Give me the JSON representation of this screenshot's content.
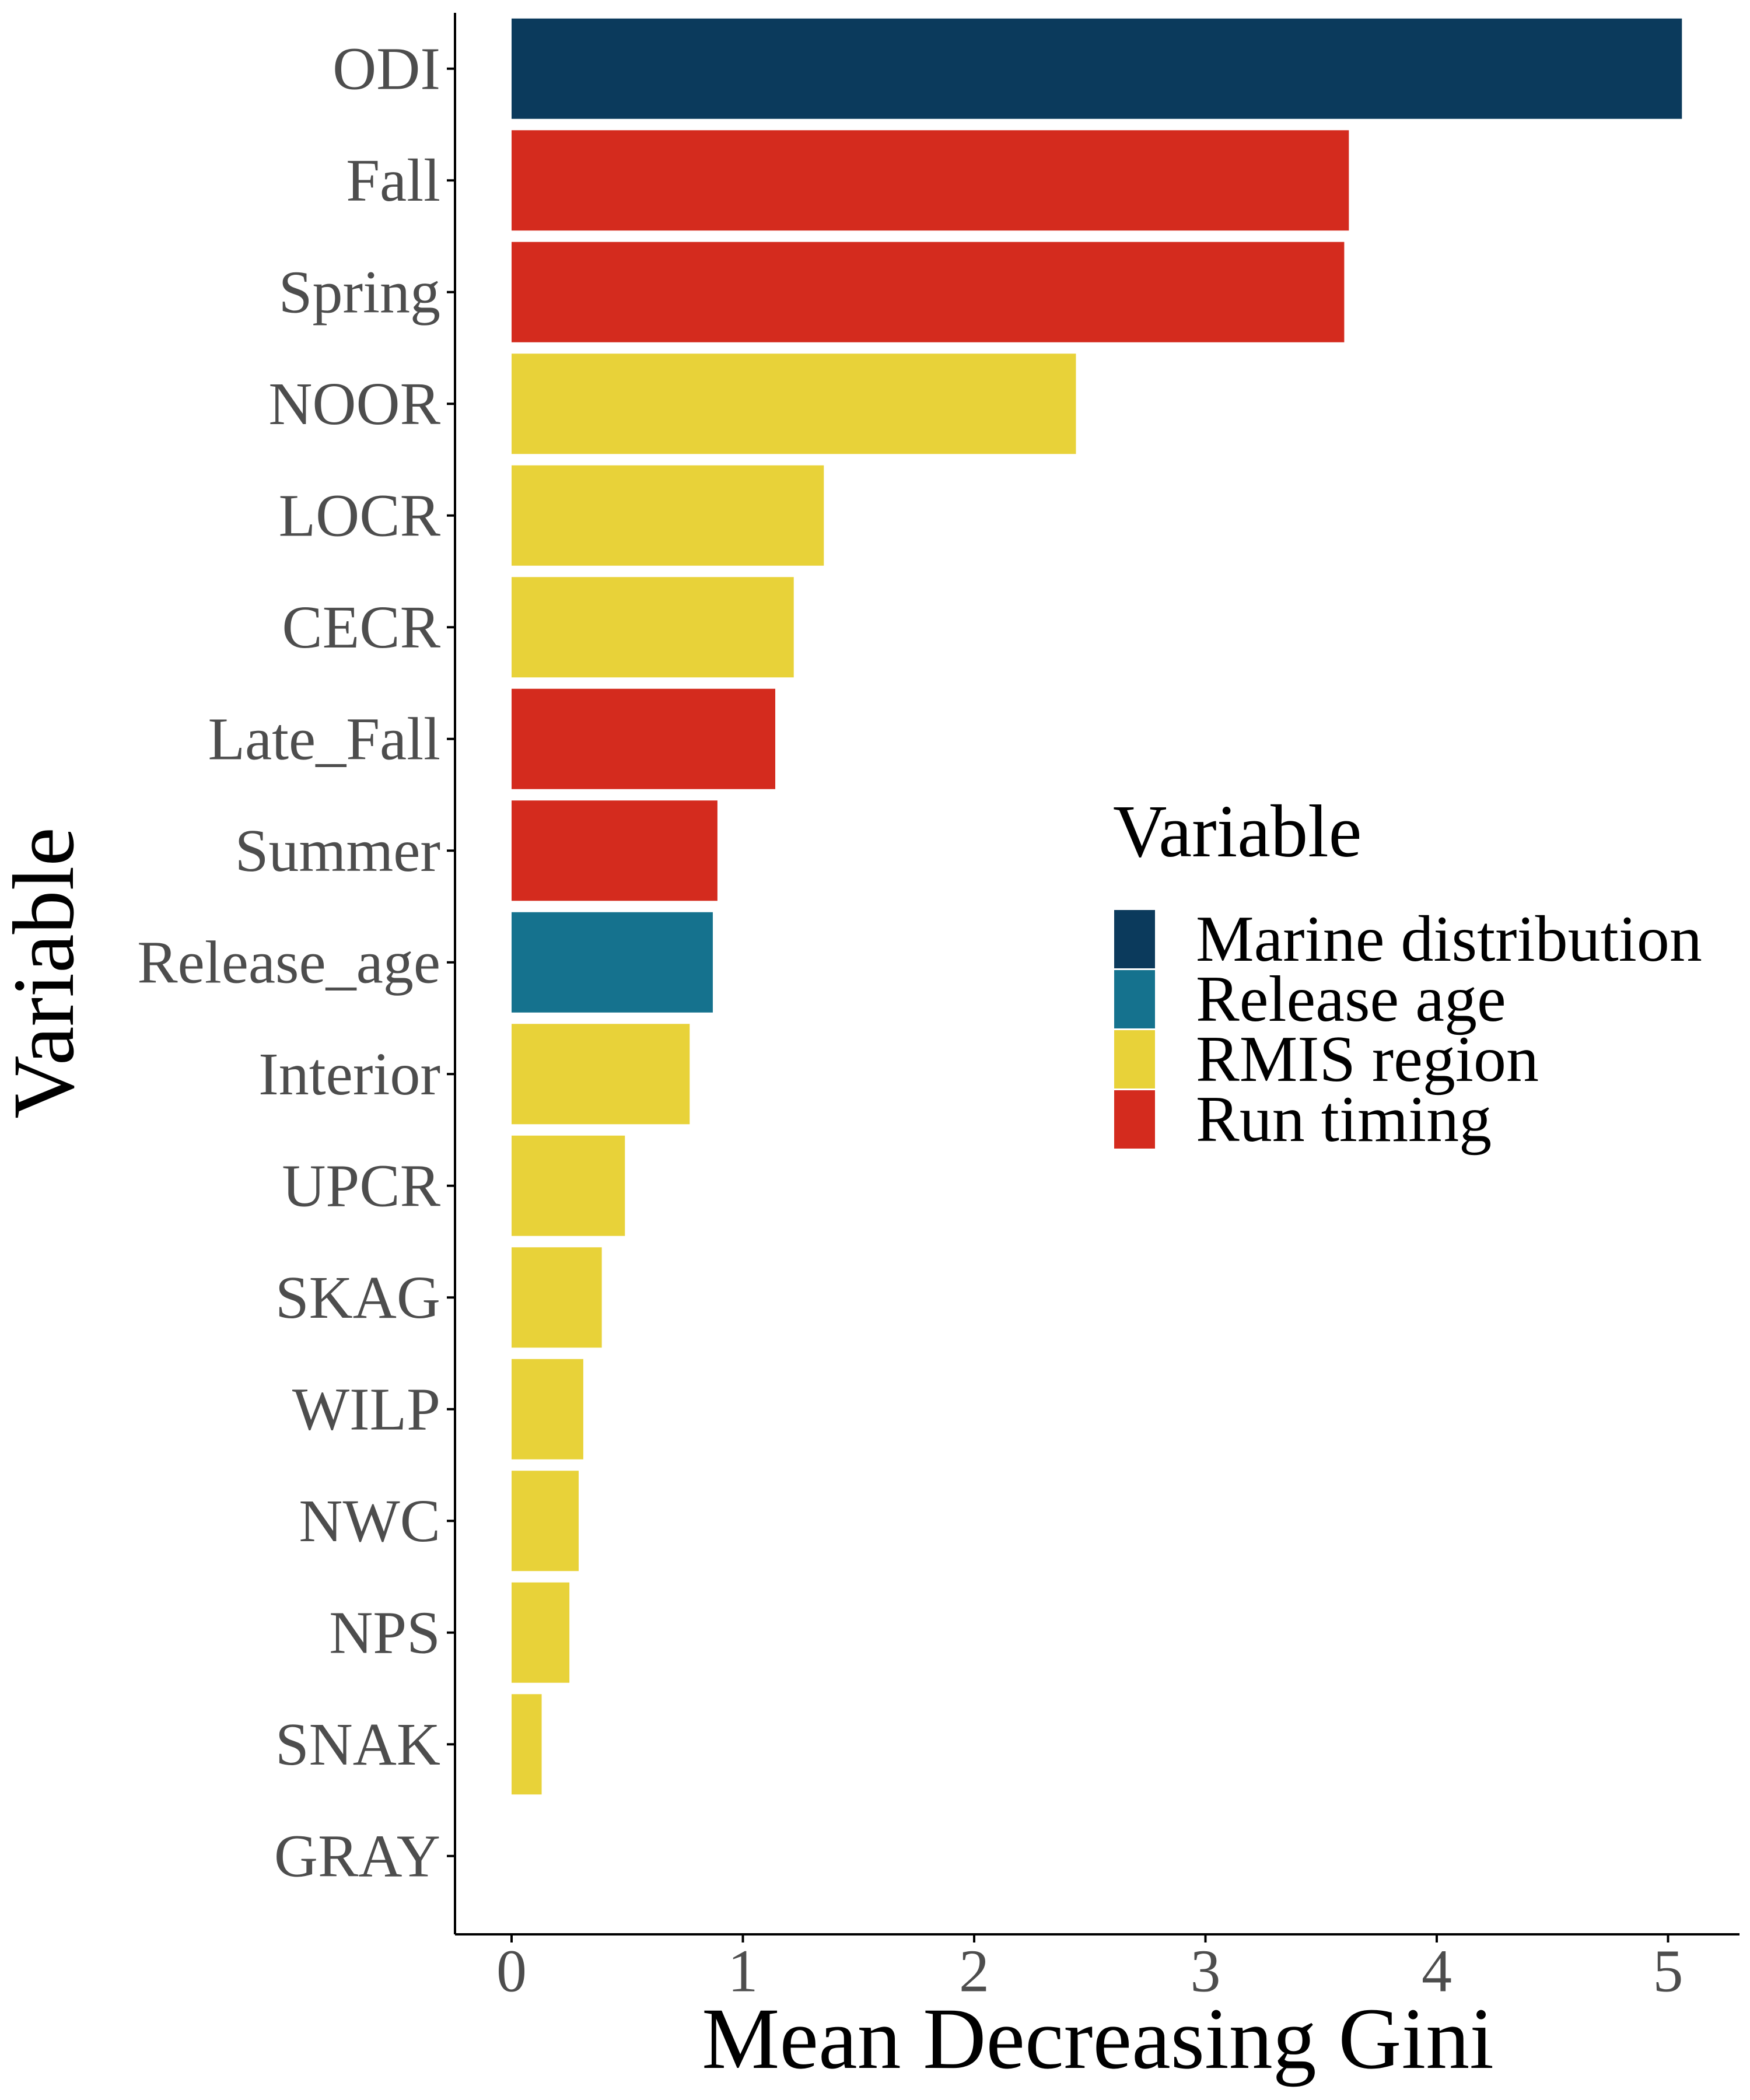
{
  "chart_data": {
    "type": "bar",
    "orientation": "horizontal",
    "xlabel": "Mean Decreasing Gini",
    "ylabel": "Variable",
    "xlim": [
      -0.25,
      5.3
    ],
    "xticks": [
      0,
      1,
      2,
      3,
      4,
      5
    ],
    "grid": false,
    "legend_position": "right",
    "categories": [
      "ODI",
      "Fall",
      "Spring",
      "NOOR",
      "LOCR",
      "CECR",
      "Late_Fall",
      "Summer",
      "Release_age",
      "Interior",
      "UPCR",
      "SKAG",
      "WILP",
      "NWC",
      "NPS",
      "SNAK",
      "GRAY"
    ],
    "values": [
      5.06,
      3.62,
      3.6,
      2.44,
      1.35,
      1.22,
      1.14,
      0.89,
      0.87,
      0.77,
      0.49,
      0.39,
      0.31,
      0.29,
      0.25,
      0.13,
      0.0
    ],
    "groups": [
      "Marine distribution",
      "Run timing",
      "Run timing",
      "RMIS region",
      "RMIS region",
      "RMIS region",
      "Run timing",
      "Run timing",
      "Release age",
      "RMIS region",
      "RMIS region",
      "RMIS region",
      "RMIS region",
      "RMIS region",
      "RMIS region",
      "RMIS region",
      "RMIS region"
    ],
    "legend": {
      "title": "Variable",
      "entries": [
        {
          "label": "Marine distribution",
          "color": "#0b3a5c"
        },
        {
          "label": "Release age",
          "color": "#15728e"
        },
        {
          "label": "RMIS region",
          "color": "#e8d239"
        },
        {
          "label": "Run timing",
          "color": "#d42b1e"
        }
      ]
    }
  }
}
